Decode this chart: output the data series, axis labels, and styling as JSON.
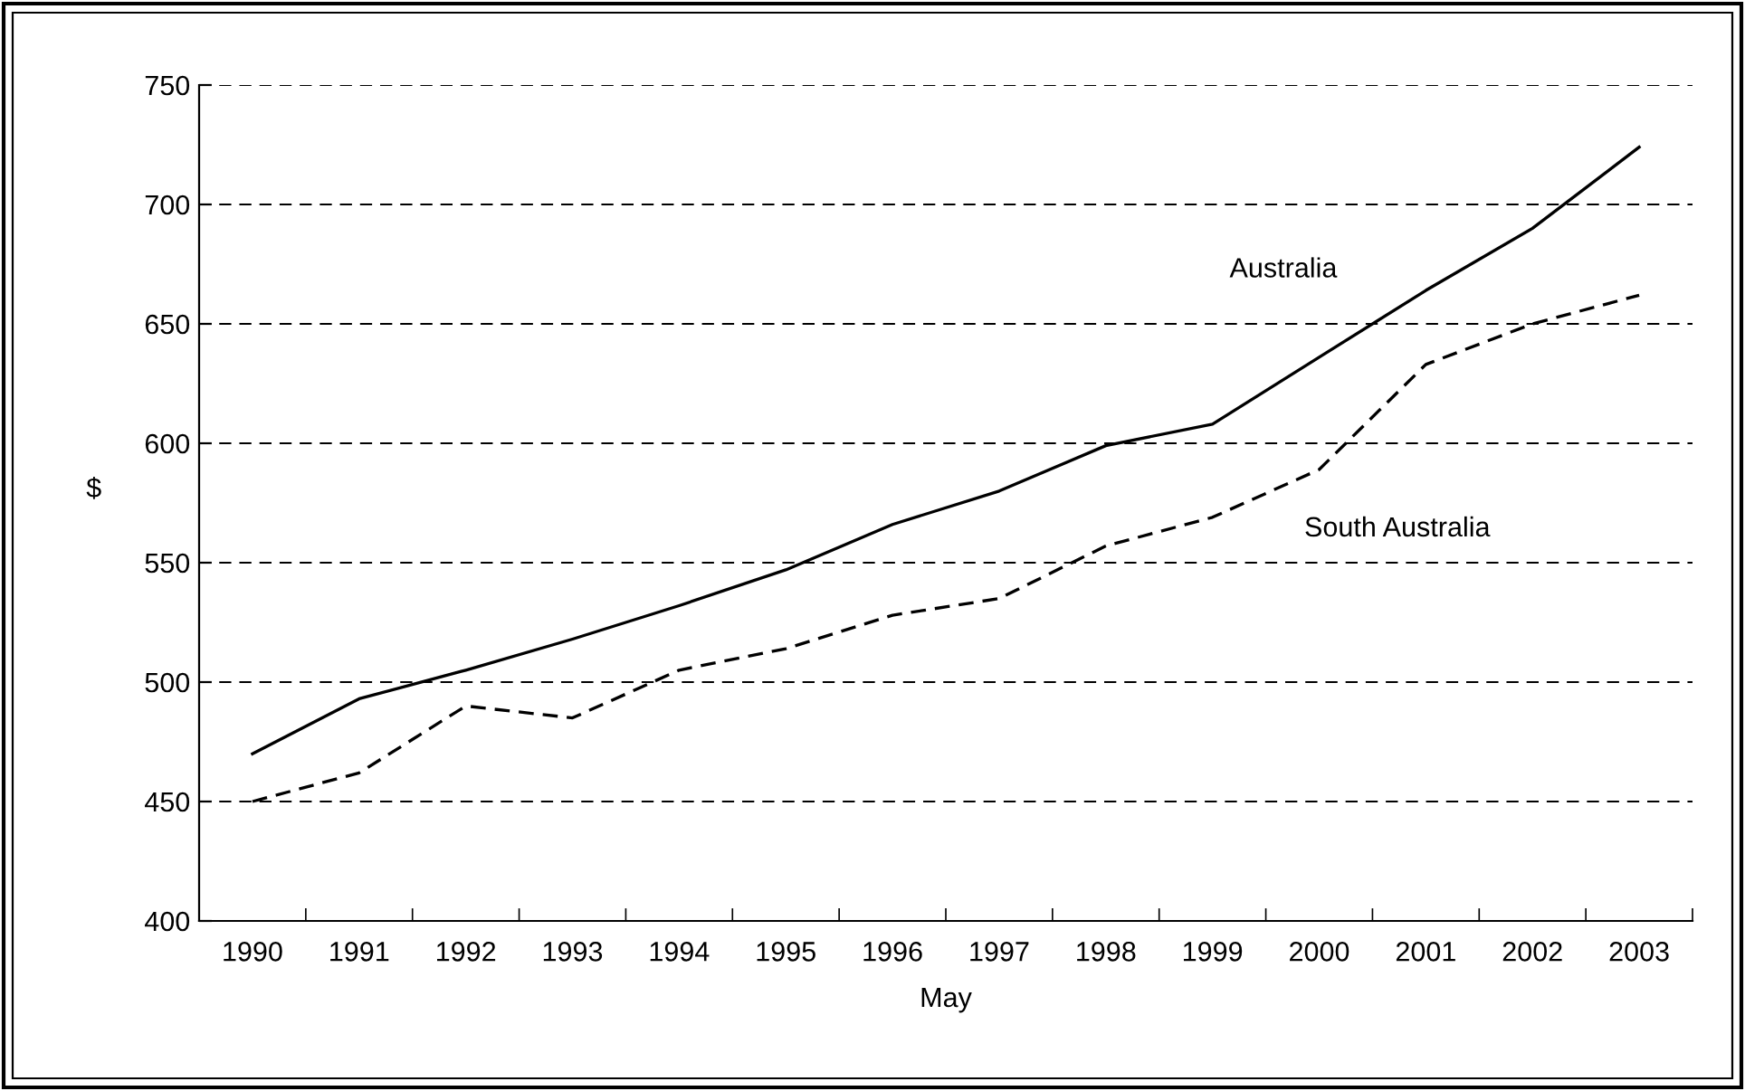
{
  "chart_data": {
    "type": "line",
    "xlabel": "May",
    "ylabel": "$",
    "categories": [
      "1990",
      "1991",
      "1992",
      "1993",
      "1994",
      "1995",
      "1996",
      "1997",
      "1998",
      "1999",
      "2000",
      "2001",
      "2002",
      "2003"
    ],
    "series": [
      {
        "name": "Australia",
        "color": "#000000",
        "line_style": "solid",
        "values": [
          470,
          493,
          505,
          518,
          532,
          547,
          566,
          580,
          599,
          608,
          636,
          664,
          690,
          724
        ]
      },
      {
        "name": "South Australia",
        "color": "#000000",
        "line_style": "dashed",
        "values": [
          450,
          462,
          490,
          485,
          505,
          514,
          528,
          535,
          557,
          569,
          589,
          633,
          650,
          662
        ]
      }
    ],
    "ylim": [
      400,
      750
    ],
    "yticks": [
      400,
      450,
      500,
      550,
      600,
      650,
      700,
      750
    ],
    "grid": "y",
    "legend": false,
    "marker": "none"
  }
}
